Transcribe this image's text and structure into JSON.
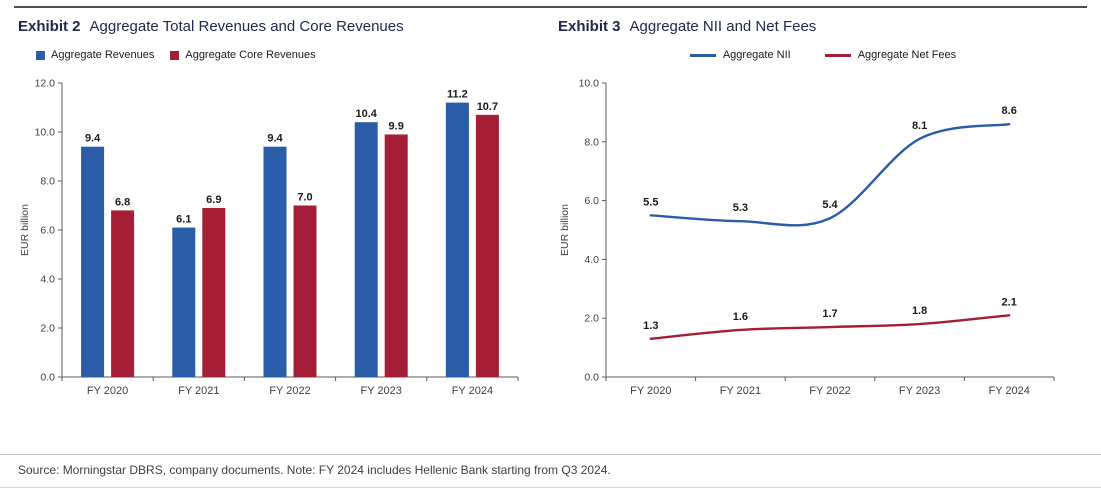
{
  "footer": {
    "text": "Source: Morningstar DBRS, company documents. Note: FY 2024 includes Hellenic Bank starting from Q3 2024."
  },
  "chart_data": [
    {
      "type": "bar",
      "exhibit": "Exhibit 2",
      "title": "Aggregate Total Revenues and Core Revenues",
      "categories": [
        "FY 2020",
        "FY 2021",
        "FY 2022",
        "FY 2023",
        "FY 2024"
      ],
      "series": [
        {
          "name": "Aggregate Revenues",
          "color": "#2A5CA8",
          "values": [
            9.4,
            6.1,
            9.4,
            10.4,
            11.2
          ]
        },
        {
          "name": "Aggregate Core Revenues",
          "color": "#A41E35",
          "values": [
            6.8,
            6.9,
            7.0,
            9.9,
            10.7
          ]
        }
      ],
      "xlabel": "",
      "ylabel": "EUR billion",
      "ylim": [
        0,
        12
      ],
      "ytick_step": 2,
      "grid": false,
      "legend_position": "top-left"
    },
    {
      "type": "line",
      "exhibit": "Exhibit 3",
      "title": "Aggregate NII and Net Fees",
      "categories": [
        "FY 2020",
        "FY 2021",
        "FY 2022",
        "FY 2023",
        "FY 2024"
      ],
      "series": [
        {
          "name": "Aggregate NII",
          "color": "#2A5CA8",
          "values": [
            5.5,
            5.3,
            5.4,
            8.1,
            8.6
          ]
        },
        {
          "name": "Aggregate Net Fees",
          "color": "#A41E35",
          "values": [
            1.3,
            1.6,
            1.7,
            1.8,
            2.1
          ]
        }
      ],
      "xlabel": "",
      "ylabel": "EUR billion",
      "ylim": [
        0,
        10
      ],
      "ytick_step": 2,
      "grid": false,
      "legend_position": "top-center"
    }
  ]
}
